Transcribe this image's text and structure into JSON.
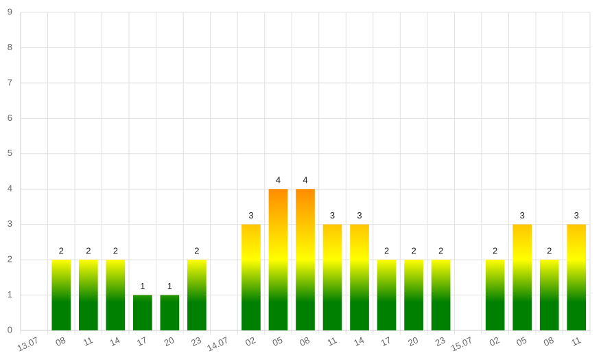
{
  "chart_data": {
    "type": "bar",
    "categories": [
      "13.07",
      "08",
      "11",
      "14",
      "17",
      "20",
      "23",
      "14.07",
      "02",
      "05",
      "08",
      "11",
      "14",
      "17",
      "20",
      "23",
      "15.07",
      "02",
      "05",
      "08",
      "11"
    ],
    "values": [
      null,
      2,
      2,
      2,
      1,
      1,
      2,
      null,
      3,
      4,
      4,
      3,
      3,
      2,
      2,
      2,
      null,
      2,
      3,
      2,
      3
    ],
    "colors": [
      "#008000",
      "#ffff00",
      "#ff8c00"
    ],
    "ylim": [
      0,
      9
    ],
    "yticks": [
      0,
      1,
      2,
      3,
      4,
      5,
      6,
      7,
      8,
      9
    ],
    "grid": true
  }
}
